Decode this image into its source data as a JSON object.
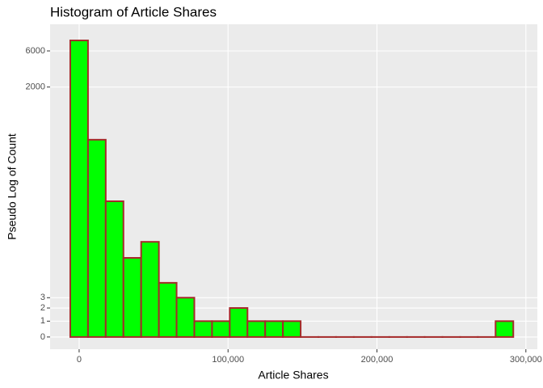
{
  "chart_data": {
    "type": "histogram",
    "title": "Histogram of Article Shares",
    "x_label": "Article Shares",
    "y_label": "Pseudo Log of Count",
    "bins": [
      -5950,
      5950,
      17850,
      29750,
      41650,
      53550,
      65450,
      77350,
      89250,
      101150,
      113050,
      124950,
      136850,
      148750,
      160650,
      172550,
      184450,
      196350,
      208250,
      220150,
      232050,
      243950,
      255850,
      267750,
      279650,
      291550
    ],
    "values": [
      8250,
      403,
      62,
      11,
      18,
      5,
      3,
      1,
      1,
      2,
      1,
      1,
      1,
      0,
      0,
      0,
      0,
      0,
      0,
      0,
      0,
      0,
      0,
      0,
      1
    ],
    "color": "#00FF00",
    "edge_color": "#A52A2A",
    "y_scale": "pseudo_log",
    "xlim": [
      -19500,
      307700
    ],
    "xticks": [
      0,
      {
        "value": 100000,
        "label": "100,000"
      },
      {
        "value": 200000,
        "label": "200,000"
      },
      {
        "value": 300000,
        "label": "300,000"
      }
    ],
    "ylim": [
      -0.76,
      13500
    ],
    "yticks": [
      0,
      1,
      2,
      3,
      2000,
      6000
    ],
    "grid": true
  }
}
